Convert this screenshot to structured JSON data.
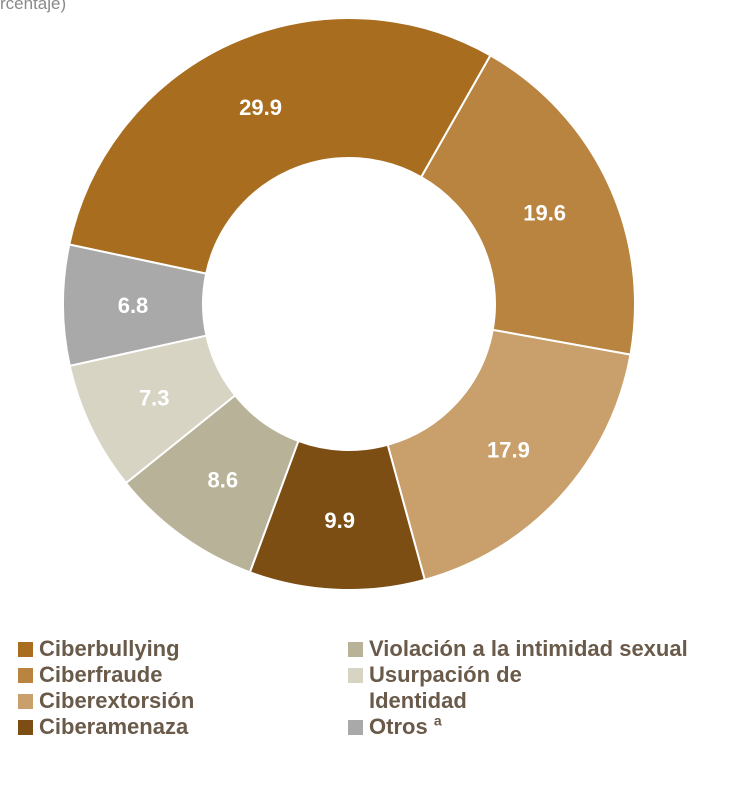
{
  "subtitle": "rcentaje)",
  "chart_data": {
    "type": "pie",
    "variant": "donut",
    "categories": [
      "Ciberbullying",
      "Ciberfraude",
      "Ciberextorsión",
      "Ciberamenaza",
      "Violación a la intimidad sexual",
      "Usurpación de Identidad",
      "Otros"
    ],
    "values": [
      29.9,
      19.6,
      17.9,
      9.9,
      8.6,
      7.3,
      6.8
    ],
    "value_labels": [
      "29.9",
      "19.6",
      "17.9",
      "9.9",
      "8.6",
      "7.3",
      "6.8"
    ],
    "colors": [
      "#a86d1e",
      "#b9843f",
      "#c9a06b",
      "#7d4e14",
      "#b8b298",
      "#d8d4c4",
      "#a9a9a9"
    ],
    "legend_placement": "bottom"
  },
  "legend": {
    "left": [
      {
        "label": "Ciberbullying",
        "color": "#a86d1e"
      },
      {
        "label": "Ciberfraude",
        "color": "#b9843f"
      },
      {
        "label": "Ciberextorsión",
        "color": "#c9a06b"
      },
      {
        "label": "Ciberamenaza",
        "color": "#7d4e14"
      }
    ],
    "right": [
      {
        "label": "Violación a la intimidad sexual",
        "color": "#b8b298"
      },
      {
        "label": "Usurpación de Identidad",
        "color": "#d8d4c4"
      },
      {
        "label": "Otros",
        "note": "a",
        "color": "#a9a9a9"
      }
    ]
  }
}
